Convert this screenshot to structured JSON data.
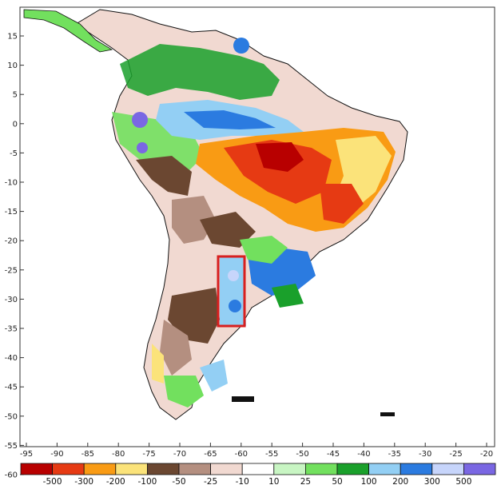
{
  "map": {
    "y_ticks": [
      "15",
      "10",
      "5",
      "0",
      "-5",
      "-10",
      "-15",
      "-20",
      "-25",
      "-30",
      "-35",
      "-40",
      "-45",
      "-50",
      "-55",
      "-60"
    ],
    "x_ticks": [
      "-95",
      "-90",
      "-85",
      "-80",
      "-75",
      "-70",
      "-65",
      "-60",
      "-55",
      "-50",
      "-45",
      "-40",
      "-35",
      "-30",
      "-25",
      "-20"
    ],
    "highlight_color": "#d81f1f",
    "colorbar": {
      "colors": [
        "#b80000",
        "#e63a13",
        "#f99b14",
        "#fbe37a",
        "#6b4731",
        "#b48f80",
        "#f1d9d1",
        "#ffffff",
        "#c8f5c3",
        "#72e05e",
        "#1aa02b",
        "#93cff4",
        "#2b7be0",
        "#c7d5fb",
        "#7a67e3"
      ],
      "labels": [
        "-500",
        "-300",
        "-200",
        "-100",
        "-50",
        "-25",
        "-10",
        "10",
        "25",
        "50",
        "100",
        "200",
        "300",
        "500"
      ]
    }
  }
}
